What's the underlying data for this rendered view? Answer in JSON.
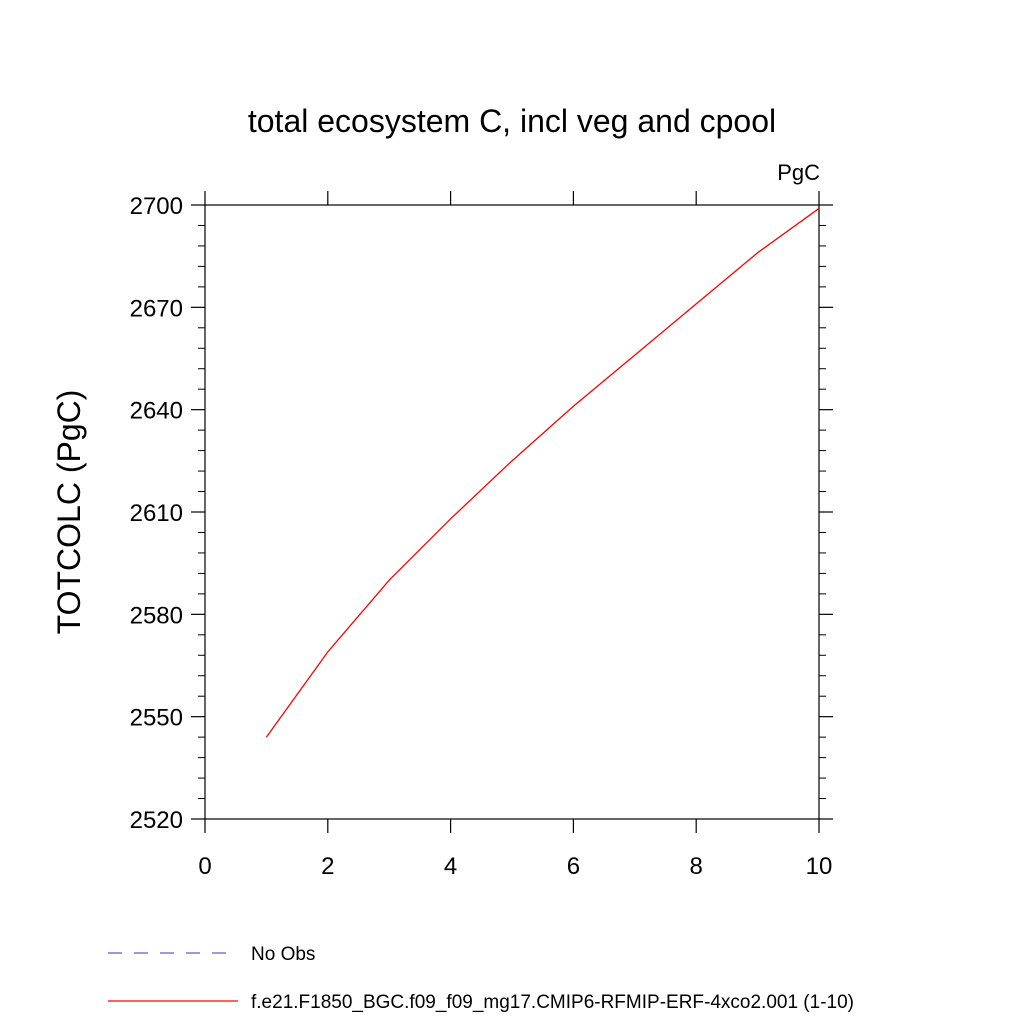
{
  "chart_data": {
    "type": "line",
    "title": "total ecosystem C, incl veg and cpool",
    "units": "PgC",
    "xlabel": "",
    "ylabel": "TOTCOLC  (PgC)",
    "xlim": [
      0,
      10
    ],
    "ylim": [
      2520,
      2700
    ],
    "xticks": [
      0,
      2,
      4,
      6,
      8,
      10
    ],
    "yticks": [
      2520,
      2550,
      2580,
      2610,
      2640,
      2670,
      2700
    ],
    "series": [
      {
        "name": "No Obs",
        "color": "#6a5acd",
        "style": "dashed",
        "x": [],
        "y": []
      },
      {
        "name": "f.e21.F1850_BGC.f09_f09_mg17.CMIP6-RFMIP-ERF-4xco2.001 (1-10)",
        "color": "#ff0000",
        "style": "solid",
        "x": [
          1,
          2,
          3,
          4,
          5,
          6,
          7,
          8,
          9,
          10
        ],
        "y": [
          2544,
          2569,
          2590,
          2608,
          2625,
          2641,
          2656,
          2671,
          2686,
          2699
        ]
      }
    ],
    "grid": false,
    "legend_position": "bottom"
  }
}
